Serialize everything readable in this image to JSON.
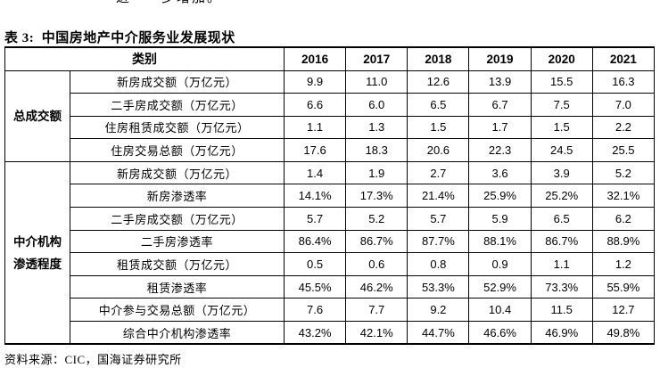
{
  "page": {
    "top_partial_text": "进　一步增加。",
    "title": "表 3:  中国房地产中介服务业发展现状",
    "source_note": "资料来源：CIC，国海证券研究所"
  },
  "table": {
    "header": {
      "category_label": "类别",
      "years": [
        "2016",
        "2017",
        "2018",
        "2019",
        "2020",
        "2021"
      ]
    },
    "groups": [
      {
        "label": "总成交额",
        "label_lines": [
          "总成交额"
        ],
        "rows": [
          {
            "category": "新房成交额（万亿元）",
            "values": [
              "9.9",
              "11.0",
              "12.6",
              "13.9",
              "15.5",
              "16.3"
            ]
          },
          {
            "category": "二手房成交额（万亿元）",
            "values": [
              "6.6",
              "6.0",
              "6.5",
              "6.7",
              "7.5",
              "7.0"
            ]
          },
          {
            "category": "住房租赁成交额（万亿元）",
            "values": [
              "1.1",
              "1.3",
              "1.5",
              "1.7",
              "1.5",
              "2.2"
            ]
          },
          {
            "category": "住房交易总额（万亿元）",
            "values": [
              "17.6",
              "18.3",
              "20.6",
              "22.3",
              "24.5",
              "25.5"
            ]
          }
        ]
      },
      {
        "label": "中介机构渗透程度",
        "label_lines": [
          "中介机构",
          "渗透程度"
        ],
        "rows": [
          {
            "category": "新房成交额（万亿元）",
            "values": [
              "1.4",
              "1.9",
              "2.7",
              "3.6",
              "3.9",
              "5.2"
            ]
          },
          {
            "category": "新房渗透率",
            "values": [
              "14.1%",
              "17.3%",
              "21.4%",
              "25.9%",
              "25.2%",
              "32.1%"
            ]
          },
          {
            "category": "二手房成交额（万亿元）",
            "values": [
              "5.7",
              "5.2",
              "5.7",
              "5.9",
              "6.5",
              "6.2"
            ]
          },
          {
            "category": "二手房渗透率",
            "values": [
              "86.4%",
              "86.7%",
              "87.7%",
              "88.1%",
              "86.7%",
              "88.9%"
            ]
          },
          {
            "category": "租赁成交额（万亿元）",
            "values": [
              "0.5",
              "0.6",
              "0.8",
              "0.9",
              "1.1",
              "1.2"
            ]
          },
          {
            "category": "租赁渗透率",
            "values": [
              "45.5%",
              "46.2%",
              "53.3%",
              "52.9%",
              "73.3%",
              "55.9%"
            ]
          },
          {
            "category": "中介参与交易总额（万亿元）",
            "values": [
              "7.6",
              "7.7",
              "9.2",
              "10.4",
              "11.5",
              "12.7"
            ]
          },
          {
            "category": "综合中介机构渗透率",
            "values": [
              "43.2%",
              "42.1%",
              "44.7%",
              "46.6%",
              "46.9%",
              "49.8%"
            ]
          }
        ]
      }
    ]
  },
  "colors": {
    "text": "#000000",
    "border": "#000000",
    "background": "#ffffff"
  }
}
